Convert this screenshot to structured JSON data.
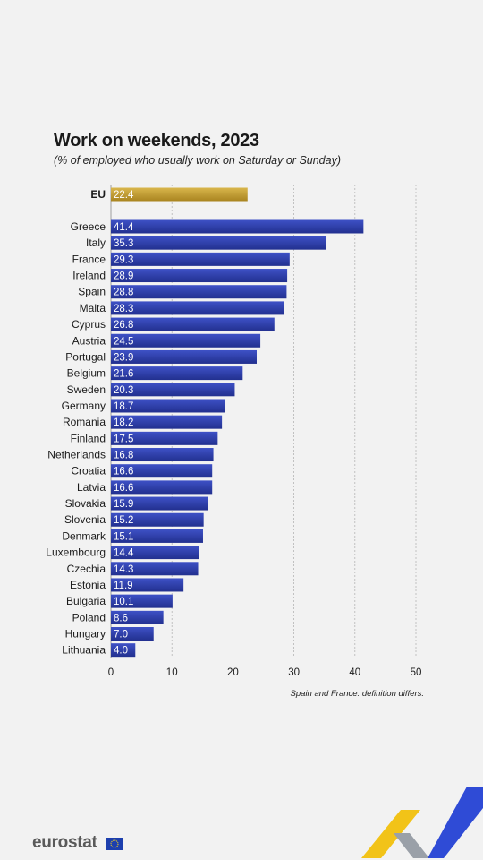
{
  "title": "Work on weekends, 2023",
  "subtitle": "(% of employed who usually work on Saturday or Sunday)",
  "note": "Spain and France: definition differs.",
  "brand": "eurostat",
  "colors": {
    "eu_bar": "#b8952a",
    "eu_bar_light": "#d6b44a",
    "country_bar": "#2a3aa5",
    "country_bar_light": "#3f52c4",
    "grid": "#b5b5b5",
    "label_text": "#ffffff",
    "deco_yellow": "#f2c318",
    "deco_blue": "#2f4bd6"
  },
  "chart_data": {
    "type": "bar",
    "orientation": "horizontal",
    "title": "Work on weekends, 2023",
    "subtitle": "(% of employed who usually work on Saturday or Sunday)",
    "xlim": [
      0,
      50
    ],
    "xticks": [
      0,
      10,
      20,
      30,
      40,
      50
    ],
    "grid": true,
    "aggregate": {
      "category": "EU",
      "value": 22.4
    },
    "categories": [
      "Greece",
      "Italy",
      "France",
      "Ireland",
      "Spain",
      "Malta",
      "Cyprus",
      "Austria",
      "Portugal",
      "Belgium",
      "Sweden",
      "Germany",
      "Romania",
      "Finland",
      "Netherlands",
      "Croatia",
      "Latvia",
      "Slovakia",
      "Slovenia",
      "Denmark",
      "Luxembourg",
      "Czechia",
      "Estonia",
      "Bulgaria",
      "Poland",
      "Hungary",
      "Lithuania"
    ],
    "values": [
      41.4,
      35.3,
      29.3,
      28.9,
      28.8,
      28.3,
      26.8,
      24.5,
      23.9,
      21.6,
      20.3,
      18.7,
      18.2,
      17.5,
      16.8,
      16.6,
      16.6,
      15.9,
      15.2,
      15.1,
      14.4,
      14.3,
      11.9,
      10.1,
      8.6,
      7.0,
      4.0
    ],
    "value_labels": [
      "41.4",
      "35.3",
      "29.3",
      "28.9",
      "28.8",
      "28.3",
      "26.8",
      "24.5",
      "23.9",
      "21.6",
      "20.3",
      "18.7",
      "18.2",
      "17.5",
      "16.8",
      "16.6",
      "16.6",
      "15.9",
      "15.2",
      "15.1",
      "14.4",
      "14.3",
      "11.9",
      "10.1",
      "8.6",
      "7.0",
      "4.0"
    ],
    "aggregate_label": "22.4"
  }
}
